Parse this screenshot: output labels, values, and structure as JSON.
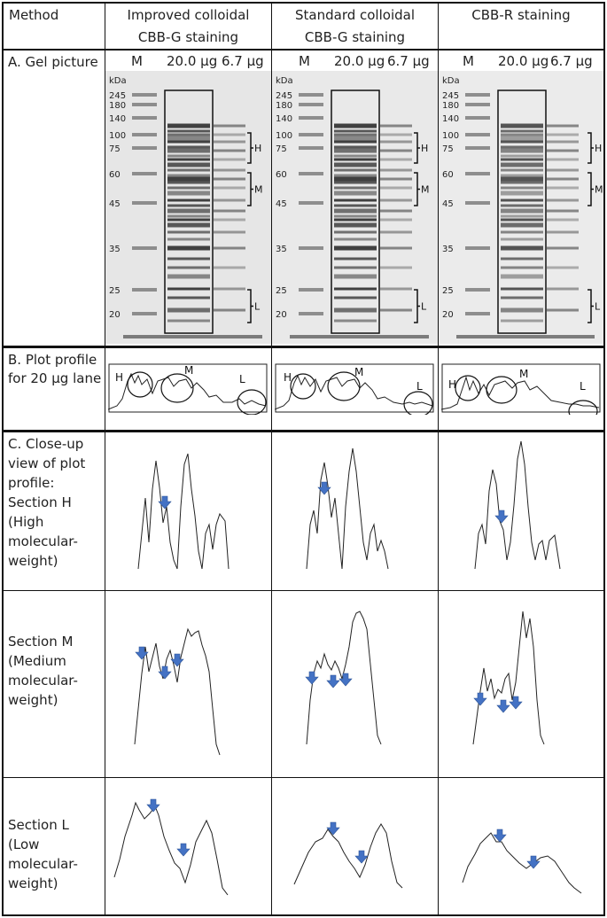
{
  "header": {
    "method": "Method",
    "col1": [
      "Improved colloidal",
      "CBB-G staining"
    ],
    "col2": [
      "Standard colloidal",
      "CBB-G staining"
    ],
    "col3": "CBB-R staining"
  },
  "lane_labels": {
    "m": "M",
    "a": "20.0 µg",
    "b": "6.7 µg"
  },
  "row_labels": {
    "gel": "A. Gel picture",
    "plot": "B. Plot profile for 20 µg lane",
    "closeup": "C. Close-up view of plot profile: Section H (High molecular-weight)",
    "section_m": "Section M (Medium molecular-weight)",
    "section_l": "Section L (Low molecular-weight)"
  },
  "gel": {
    "unit": "kDa",
    "markers": [
      "245",
      "180",
      "140",
      "100",
      "75",
      "60",
      "45",
      "35",
      "25",
      "20"
    ],
    "brackets": [
      "H",
      "M",
      "L"
    ]
  },
  "profile_labels": {
    "h": "H",
    "m": "M",
    "l": "L"
  },
  "colors": {
    "arrow": "#4472c4",
    "line": "#222222",
    "border": "#111111"
  }
}
